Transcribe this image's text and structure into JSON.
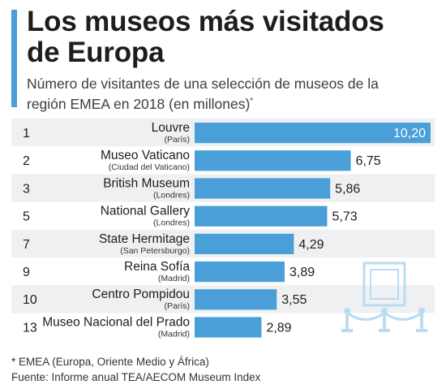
{
  "header": {
    "title_line1": "Los museos más visitados",
    "title_line2": "de Europa",
    "subtitle_line1": "Número de visitantes de una selección de museos de la",
    "subtitle_line2": "región EMEA en 2018 (en millones)",
    "subtitle_mark": "*"
  },
  "footer": {
    "note": "* EMEA (Europa, Oriente Medio y África)",
    "source": "Fuente: Informe anual TEA/AECOM Museum Index"
  },
  "colors": {
    "bar": "#4a9fd8",
    "stripe": "#eef0f2",
    "accent": "#4a9fd8",
    "illustration": "#b9dcf2"
  },
  "illustration": {
    "icon": "museum-painting-with-rope-barrier-icon"
  },
  "chart_data": {
    "type": "bar",
    "orientation": "horizontal",
    "title": "Los museos más visitados de Europa",
    "unit": "millones",
    "xlim": [
      0,
      10.2
    ],
    "grid": false,
    "items": [
      {
        "rank": "1",
        "name": "Louvre",
        "location": "(París)",
        "value": 10.2,
        "label": "10,20"
      },
      {
        "rank": "2",
        "name": "Museo Vaticano",
        "location": "(Ciudad del Vaticano)",
        "value": 6.75,
        "label": "6,75"
      },
      {
        "rank": "3",
        "name": "British Museum",
        "location": "(Londres)",
        "value": 5.86,
        "label": "5,86"
      },
      {
        "rank": "5",
        "name": "National Gallery",
        "location": "(Londres)",
        "value": 5.73,
        "label": "5,73"
      },
      {
        "rank": "7",
        "name": "State Hermitage",
        "location": "(San Petersburgo)",
        "value": 4.29,
        "label": "4,29"
      },
      {
        "rank": "9",
        "name": "Reina Sofía",
        "location": "(Madrid)",
        "value": 3.89,
        "label": "3,89"
      },
      {
        "rank": "10",
        "name": "Centro Pompidou",
        "location": "(París)",
        "value": 3.55,
        "label": "3,55"
      },
      {
        "rank": "13",
        "name": "Museo Nacional del Prado",
        "location": "(Madrid)",
        "value": 2.89,
        "label": "2,89"
      }
    ]
  }
}
